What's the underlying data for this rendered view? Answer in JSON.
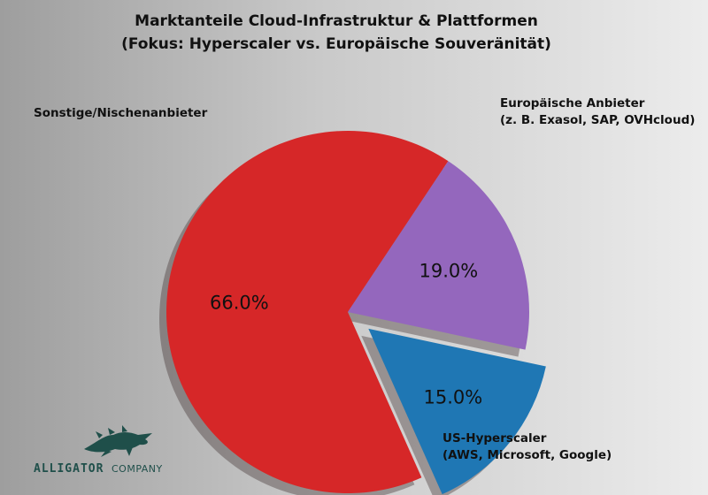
{
  "chart_data": {
    "type": "pie",
    "title": "Marktanteile Cloud-Infrastruktur & Plattformen",
    "subtitle": "(Fokus: Hyperscaler vs. Europäische Souveränität)",
    "slices": [
      {
        "label_lines": [
          "US-Hyperscaler",
          "(AWS, Microsoft, Google)"
        ],
        "value": 66.0,
        "display": "66.0%",
        "color": "#d62728",
        "exploded": false
      },
      {
        "label_lines": [
          "Sonstige/Nischenanbieter"
        ],
        "value": 19.0,
        "display": "19.0%",
        "color": "#9467bd",
        "exploded": false
      },
      {
        "label_lines": [
          "Europäische Anbieter",
          "(z. B. Exasol, SAP, OVHcloud)"
        ],
        "value": 15.0,
        "display": "15.0%",
        "color": "#1f77b4",
        "exploded": true
      }
    ],
    "shadow": true,
    "legend": "none"
  },
  "logo": {
    "main": "ALLIGATOR",
    "sub": "COMPANY",
    "color": "#1f4f4a",
    "icon": "alligator-icon"
  }
}
